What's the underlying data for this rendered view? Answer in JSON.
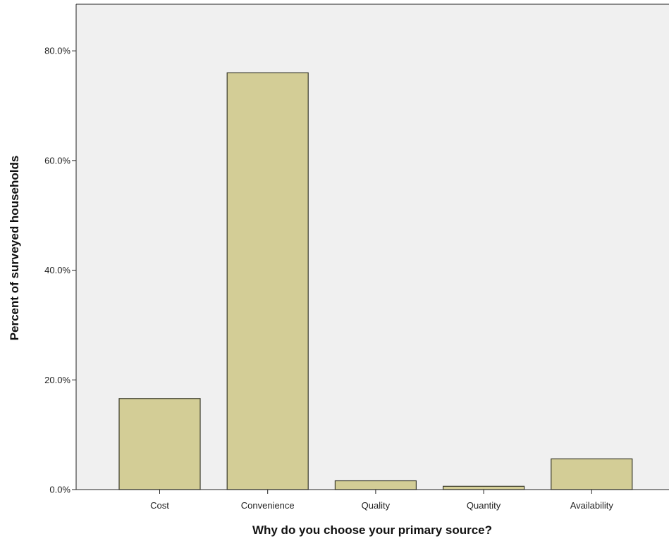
{
  "chart_data": {
    "type": "bar",
    "title": "",
    "xlabel": "Why do you choose your primary source?",
    "ylabel": "Percent of surveyed households",
    "categories": [
      "Cost",
      "Convenience",
      "Quality",
      "Quantity",
      "Availability"
    ],
    "values": [
      16.6,
      76.0,
      1.6,
      0.6,
      5.6
    ],
    "ylim": [
      0,
      88.5
    ],
    "yticks": [
      0,
      20,
      40,
      60,
      80
    ],
    "ytick_labels": [
      "0.0%",
      "20.0%",
      "40.0%",
      "60.0%",
      "80.0%"
    ],
    "grid": false,
    "legend": "none",
    "colors": {
      "bar_fill": "#d3cd96",
      "bar_stroke": "#3a3a2a",
      "plot_background": "#f0f0f0",
      "axis": "#222222"
    }
  }
}
